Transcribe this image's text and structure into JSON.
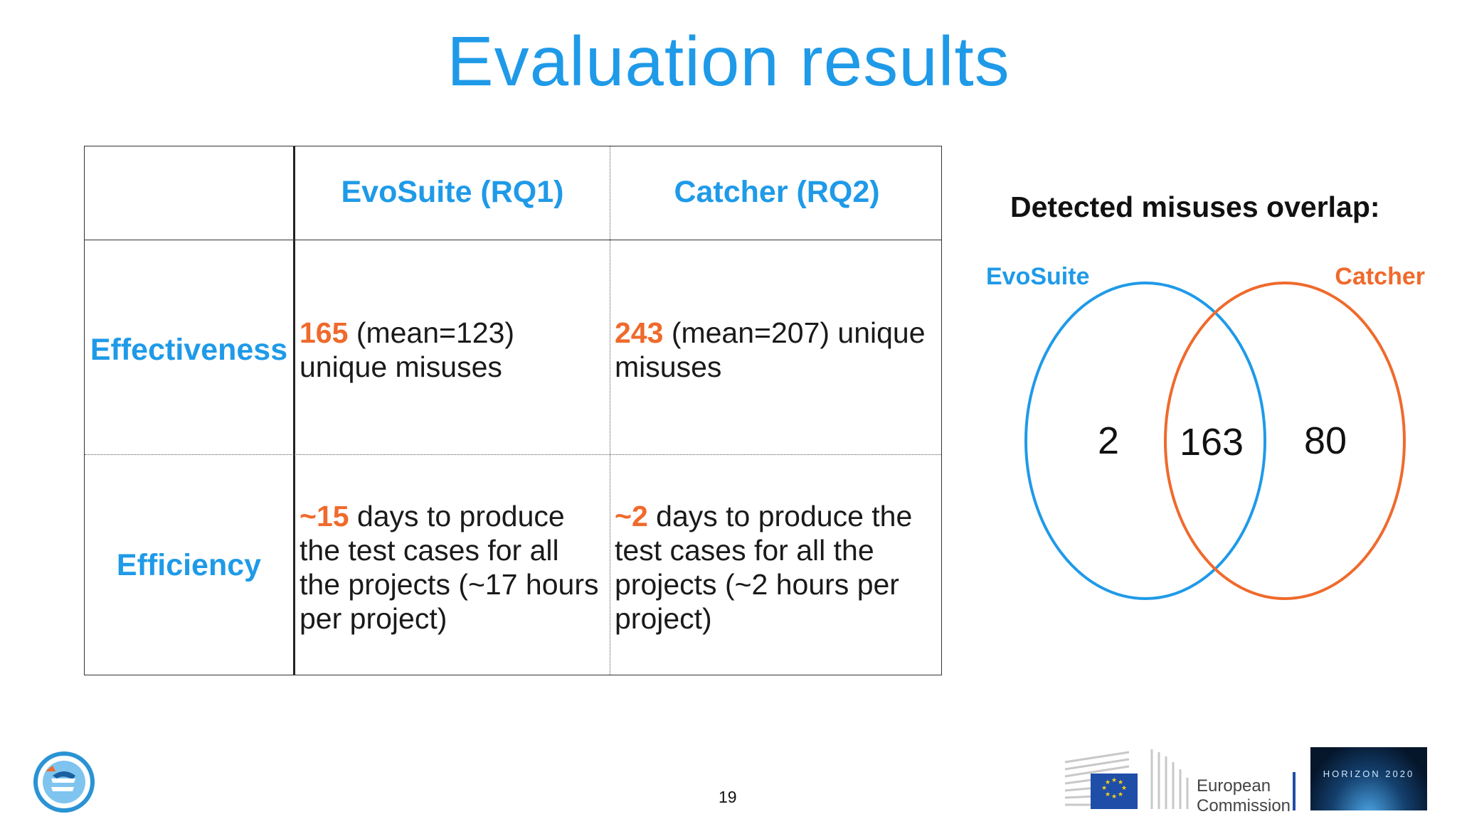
{
  "title": "Evaluation results",
  "table": {
    "col1_header": "EvoSuite (RQ1)",
    "col2_header": "Catcher (RQ2)",
    "rows": [
      {
        "label": "Effectiveness",
        "evosuite": {
          "highlight": "165",
          "text": " (mean=123) unique misuses"
        },
        "catcher": {
          "highlight": "243",
          "text": " (mean=207) unique misuses"
        }
      },
      {
        "label": "Efficiency",
        "evosuite": {
          "highlight": "~15",
          "text": " days to produce the test cases for all the projects (~17 hours per project)"
        },
        "catcher": {
          "highlight": "~2",
          "text": " days to produce the test cases for all the projects (~2 hours per project)"
        }
      }
    ]
  },
  "venn": {
    "title": "Detected misuses overlap:",
    "left_label": "EvoSuite",
    "right_label": "Catcher",
    "left_only": "2",
    "both": "163",
    "right_only": "80",
    "left_color": "#1f9ae8",
    "right_color": "#ef6a2c"
  },
  "footer": {
    "page_number": "19",
    "ec_line1": "European",
    "ec_line2": "Commission",
    "horizon_text": "HORIZON 2020"
  }
}
